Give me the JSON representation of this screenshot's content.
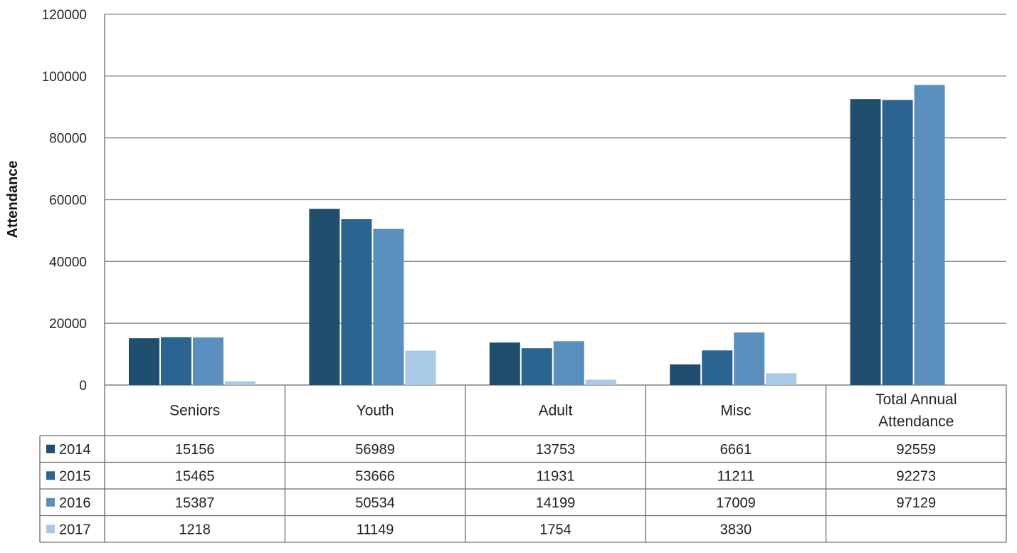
{
  "chart_data": {
    "type": "bar",
    "ylabel": "Attendance",
    "ylim": [
      0,
      120000
    ],
    "yticks": [
      "0",
      "20000",
      "40000",
      "60000",
      "80000",
      "100000",
      "120000"
    ],
    "ytick_values": [
      0,
      20000,
      40000,
      60000,
      80000,
      100000,
      120000
    ],
    "grid": true,
    "legend": "data-table",
    "categories": [
      "Seniors",
      "Youth",
      "Adult",
      "Misc",
      "Total Annual Attendance"
    ],
    "categories_display": [
      [
        "Seniors"
      ],
      [
        "Youth"
      ],
      [
        "Adult"
      ],
      [
        "Misc"
      ],
      [
        "Total Annual",
        "Attendance"
      ]
    ],
    "series": [
      {
        "name": "2014",
        "color": "#1f4e6e",
        "values": [
          15156,
          56989,
          13753,
          6661,
          92559
        ]
      },
      {
        "name": "2015",
        "color": "#2a6490",
        "values": [
          15465,
          53666,
          11931,
          11211,
          92273
        ]
      },
      {
        "name": "2016",
        "color": "#5a8fbd",
        "values": [
          15387,
          50534,
          14199,
          17009,
          97129
        ]
      },
      {
        "name": "2017",
        "color": "#a9c9e6",
        "values": [
          1218,
          11149,
          1754,
          3830,
          null
        ]
      }
    ]
  }
}
